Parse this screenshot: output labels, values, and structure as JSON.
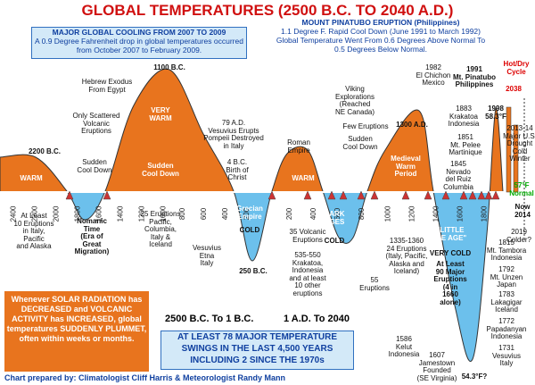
{
  "title": "GLOBAL TEMPERATURES (2500 B.C. TO 2040 A.D.)",
  "cooling_box": {
    "title": "MAJOR GLOBAL COOLING FROM 2007 TO 2009",
    "body": "A 0.9 Degree Fahrenheit drop in global temperatures occurred from October 2007 to February 2009."
  },
  "pinatubo_box": {
    "title": "MOUNT PINATUBO ERUPTION (Philippines)",
    "body": "1.1 Degree F. Rapid Cool Down (June 1991 to March 1992) Global Temperature Went From 0.6 Degrees Above Normal To 0.5 Degrees Below Normal."
  },
  "solar_box": "Whenever SOLAR RADIATION has DECREASED and VOLCANIC ACTIVITY has INCREASED, global temperatures SUDDENLY PLUMMET, often within weeks or months.",
  "eras": [
    "2500 B.C. To 1 B.C.",
    "1 A.D. To 2040"
  ],
  "swings_box": "AT LEAST 78 MAJOR TEMPERATURE SWINGS IN THE LAST 4,500 YEARS INCLUDING 2 SINCE THE 1970s",
  "credit": "Chart prepared by: Climatologist Cliff Harris & Meteorologist Randy Mann",
  "axis_labels": {
    "bc": [
      "2400",
      "2200",
      "2000",
      "1800",
      "1600",
      "1400",
      "1200",
      "1000",
      "800",
      "600",
      "400",
      "200"
    ],
    "ad": [
      "200",
      "400",
      "600",
      "800",
      "1000",
      "1200",
      "1400",
      "1600",
      "1800"
    ]
  },
  "annotations": [
    [
      "2200 B.C."
    ],
    [
      "WARM"
    ],
    [
      "Sudden",
      "Cool Down"
    ],
    [
      "Hebrew Exodus",
      "From Egypt"
    ],
    [
      "Only Scattered",
      "Volcanic",
      "Eruptions"
    ],
    [
      "1100 B.C."
    ],
    [
      "VERY",
      "WARM"
    ],
    [
      "Sudden",
      "Cool Down"
    ],
    [
      "79 A.D.",
      "Vesuvius Erupts",
      "Pompeii Destroyed",
      "in Italy"
    ],
    [
      "4 B.C.",
      "Birth of",
      "Christ"
    ],
    [
      "Roman",
      "Empire"
    ],
    [
      "WARM"
    ],
    [
      "Viking",
      "Explorations",
      "(Reached",
      "NE Canada)"
    ],
    [
      "Few Eruptions"
    ],
    [
      "Sudden",
      "Cool Down"
    ],
    [
      "1300 A.D."
    ],
    [
      "Medieval",
      "Warm",
      "Period"
    ],
    [
      "1982",
      "El Chichon",
      "Mexico"
    ],
    [
      "1991",
      "Mt. Pinatubo",
      "Philippines"
    ],
    [
      "1883",
      "Krakatoa",
      "Indonesia"
    ],
    [
      "1851",
      "Mt. Pelee",
      "Martinique"
    ],
    [
      "1845",
      "Nevado",
      "del Ruiz",
      "Columbia"
    ],
    [
      "1998",
      "58.3°F"
    ],
    [
      "Hot/Dry",
      "Cycle"
    ],
    [
      "2038"
    ],
    [
      "2013-14",
      "Major U.S.",
      "Drought",
      "Cold",
      "Winter"
    ],
    [
      "57°F",
      "Normal"
    ],
    [
      "Now",
      "2014"
    ],
    [
      "2019",
      "Colder?"
    ],
    [
      "At Least",
      "10 Eruptions",
      "in Italy,",
      "Pacific",
      "and Alaska"
    ],
    [
      "Nomanic",
      "Time",
      "(Era of",
      "Great",
      "Migration)"
    ],
    [
      "25 Eruptions",
      "Pacific,",
      "Columbia,",
      "Italy &",
      "Iceland"
    ],
    [
      "Grecian",
      "Empire"
    ],
    [
      "COLD"
    ],
    [
      "Vesuvius",
      "Etna",
      "Italy"
    ],
    [
      "250 B.C."
    ],
    [
      "35 Volcanic",
      "Eruptions"
    ],
    [
      "DARK",
      "AGES"
    ],
    [
      "COLD"
    ],
    [
      "535-550",
      "Krakatoa,",
      "Indonesia",
      "and at least",
      "10 other",
      "eruptions"
    ],
    [
      "55",
      "Eruptions"
    ],
    [
      "1335-1360",
      "24 Eruptions",
      "(Italy, Pacific,",
      "Alaska and",
      "Iceland)"
    ],
    [
      "\"LITTLE",
      "ICE AGE\""
    ],
    [
      "VERY COLD"
    ],
    [
      "At Least",
      "90 Major",
      "Eruptions",
      "(4 in",
      "1660",
      "alone)"
    ],
    [
      "1815",
      "Mt. Tambora",
      "Indonesia"
    ],
    [
      "1792",
      "Mt. Unzen",
      "Japan"
    ],
    [
      "1783",
      "Lakagigar",
      "Iceland"
    ],
    [
      "1772",
      "Papadanyan",
      "Indonesia"
    ],
    [
      "1731",
      "Vesuvius",
      "Italy"
    ],
    [
      "1586",
      "Kelut",
      "Indonesia"
    ],
    [
      "1607",
      "Jamestown",
      "Founded",
      "(SE Virginia)"
    ],
    [
      "54.3°F?"
    ]
  ]
}
